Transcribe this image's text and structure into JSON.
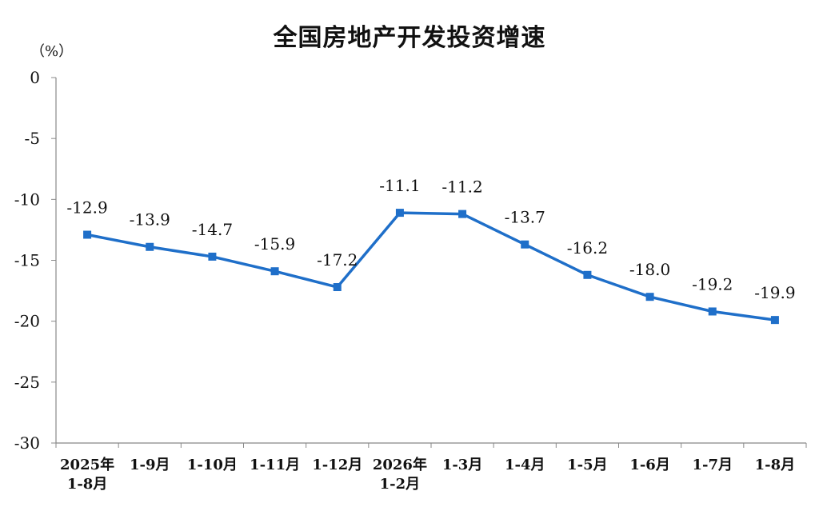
{
  "chart_data": {
    "type": "line",
    "title": "全国房地产开发投资增速",
    "ylabel": "（%）",
    "xlabel": "",
    "ylim": [
      -30,
      0
    ],
    "yticks": [
      0,
      -5,
      -10,
      -15,
      -20,
      -25,
      -30
    ],
    "grid": false,
    "categories": [
      [
        "2025年",
        "1-8月"
      ],
      [
        "1-9月"
      ],
      [
        "1-10月"
      ],
      [
        "1-11月"
      ],
      [
        "1-12月"
      ],
      [
        "2026年",
        "1-2月"
      ],
      [
        "1-3月"
      ],
      [
        "1-4月"
      ],
      [
        "1-5月"
      ],
      [
        "1-6月"
      ],
      [
        "1-7月"
      ],
      [
        "1-8月"
      ]
    ],
    "series": [
      {
        "values": [
          -12.9,
          -13.9,
          -14.7,
          -15.9,
          -17.2,
          -11.1,
          -11.2,
          -13.7,
          -16.2,
          -18.0,
          -19.2,
          -19.9
        ],
        "labels": [
          "-12.9",
          "-13.9",
          "-14.7",
          "-15.9",
          "-17.2",
          "-11.1",
          "-11.2",
          "-13.7",
          "-16.2",
          "-18.0",
          "-19.2",
          "-19.9"
        ],
        "color": "#1f6fc9"
      }
    ]
  }
}
